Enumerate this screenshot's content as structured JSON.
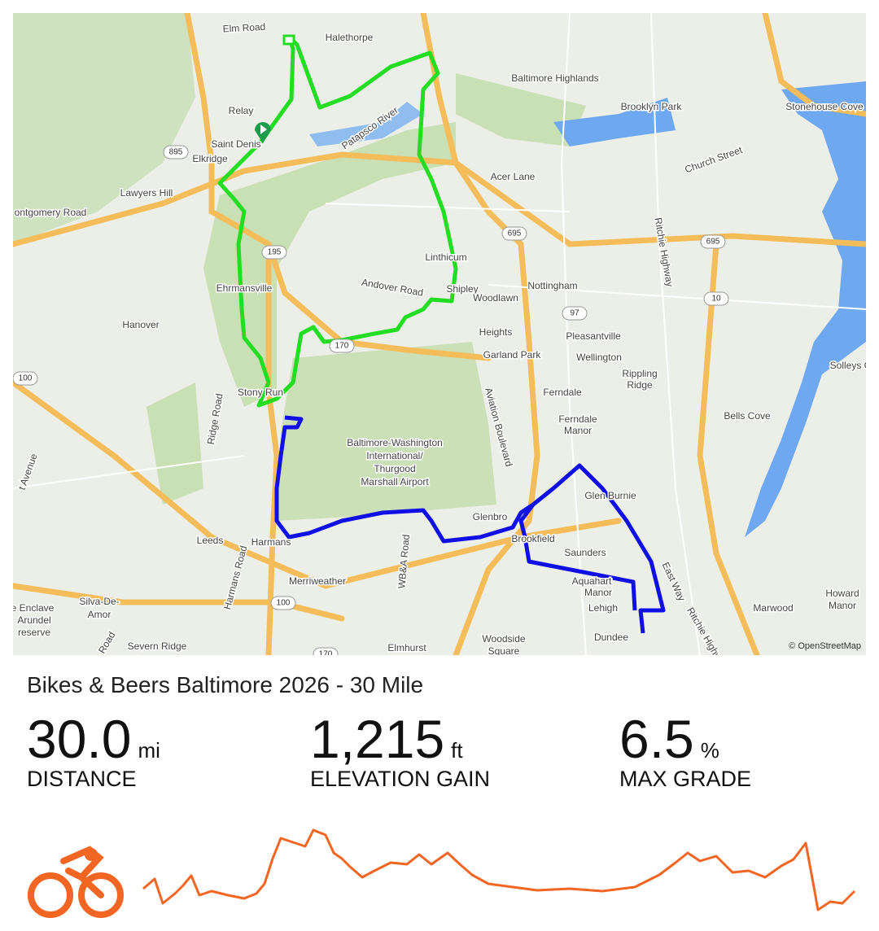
{
  "map": {
    "labels": [
      "Elm Road",
      "Halethorpe",
      "Baltimore Highlands",
      "Brooklyn Park",
      "Stonehouse Cove",
      "Relay",
      "Saint Denis",
      "Patapsco River",
      "Church Street",
      "Elkridge",
      "Lawyers Hill",
      "Acer Lane",
      "ontgomery Road",
      "Linthicum",
      "Ritchie Highway",
      "Ehrmansville",
      "Andover Road",
      "Shipley",
      "Nottingham",
      "Hanover",
      "Woodlawn",
      "Heights",
      "Pleasantville",
      "Garland Park",
      "Wellington",
      "Rippling",
      "Ridge",
      "Solleys C",
      "Ferndale",
      "Aviation Boulevard",
      "Stony Run",
      "Ridge Road",
      "Bells Cove",
      "Ferndale",
      "Manor",
      "Baltimore-Washington",
      "International/",
      "Thurgood",
      "Marshall Airport",
      "Glen Burnie",
      "Glenbro",
      "Brookfield",
      "Leeds",
      "Harmans",
      "Saunders",
      "Harmans Road",
      "WB&A Road",
      "Merriweather",
      "East Way",
      "Aquahart",
      "Manor",
      "Silva-De-",
      "Amor",
      "Lehigh",
      "Marwood",
      "Howard",
      "Manor",
      "Dundee",
      "Severn Ridge",
      "Woodside",
      "Square",
      "Elmhurst",
      "Ritchie Highway",
      "t Avenue",
      "e Enclave",
      "Arundel",
      "reserve",
      "Road"
    ],
    "shields": [
      "895",
      "195",
      "170",
      "695",
      "97",
      "10",
      "695",
      "100",
      "100",
      "170"
    ],
    "attribution": "© OpenStreetMap"
  },
  "route": {
    "title": "Bikes & Beers Baltimore 2026 - 30 Mile"
  },
  "stats": [
    {
      "value": "30.0",
      "unit": "mi",
      "label": "DISTANCE"
    },
    {
      "value": "1,215",
      "unit": "ft",
      "label": "ELEVATION GAIN"
    },
    {
      "value": "6.5",
      "unit": "%",
      "label": "MAX GRADE"
    }
  ]
}
